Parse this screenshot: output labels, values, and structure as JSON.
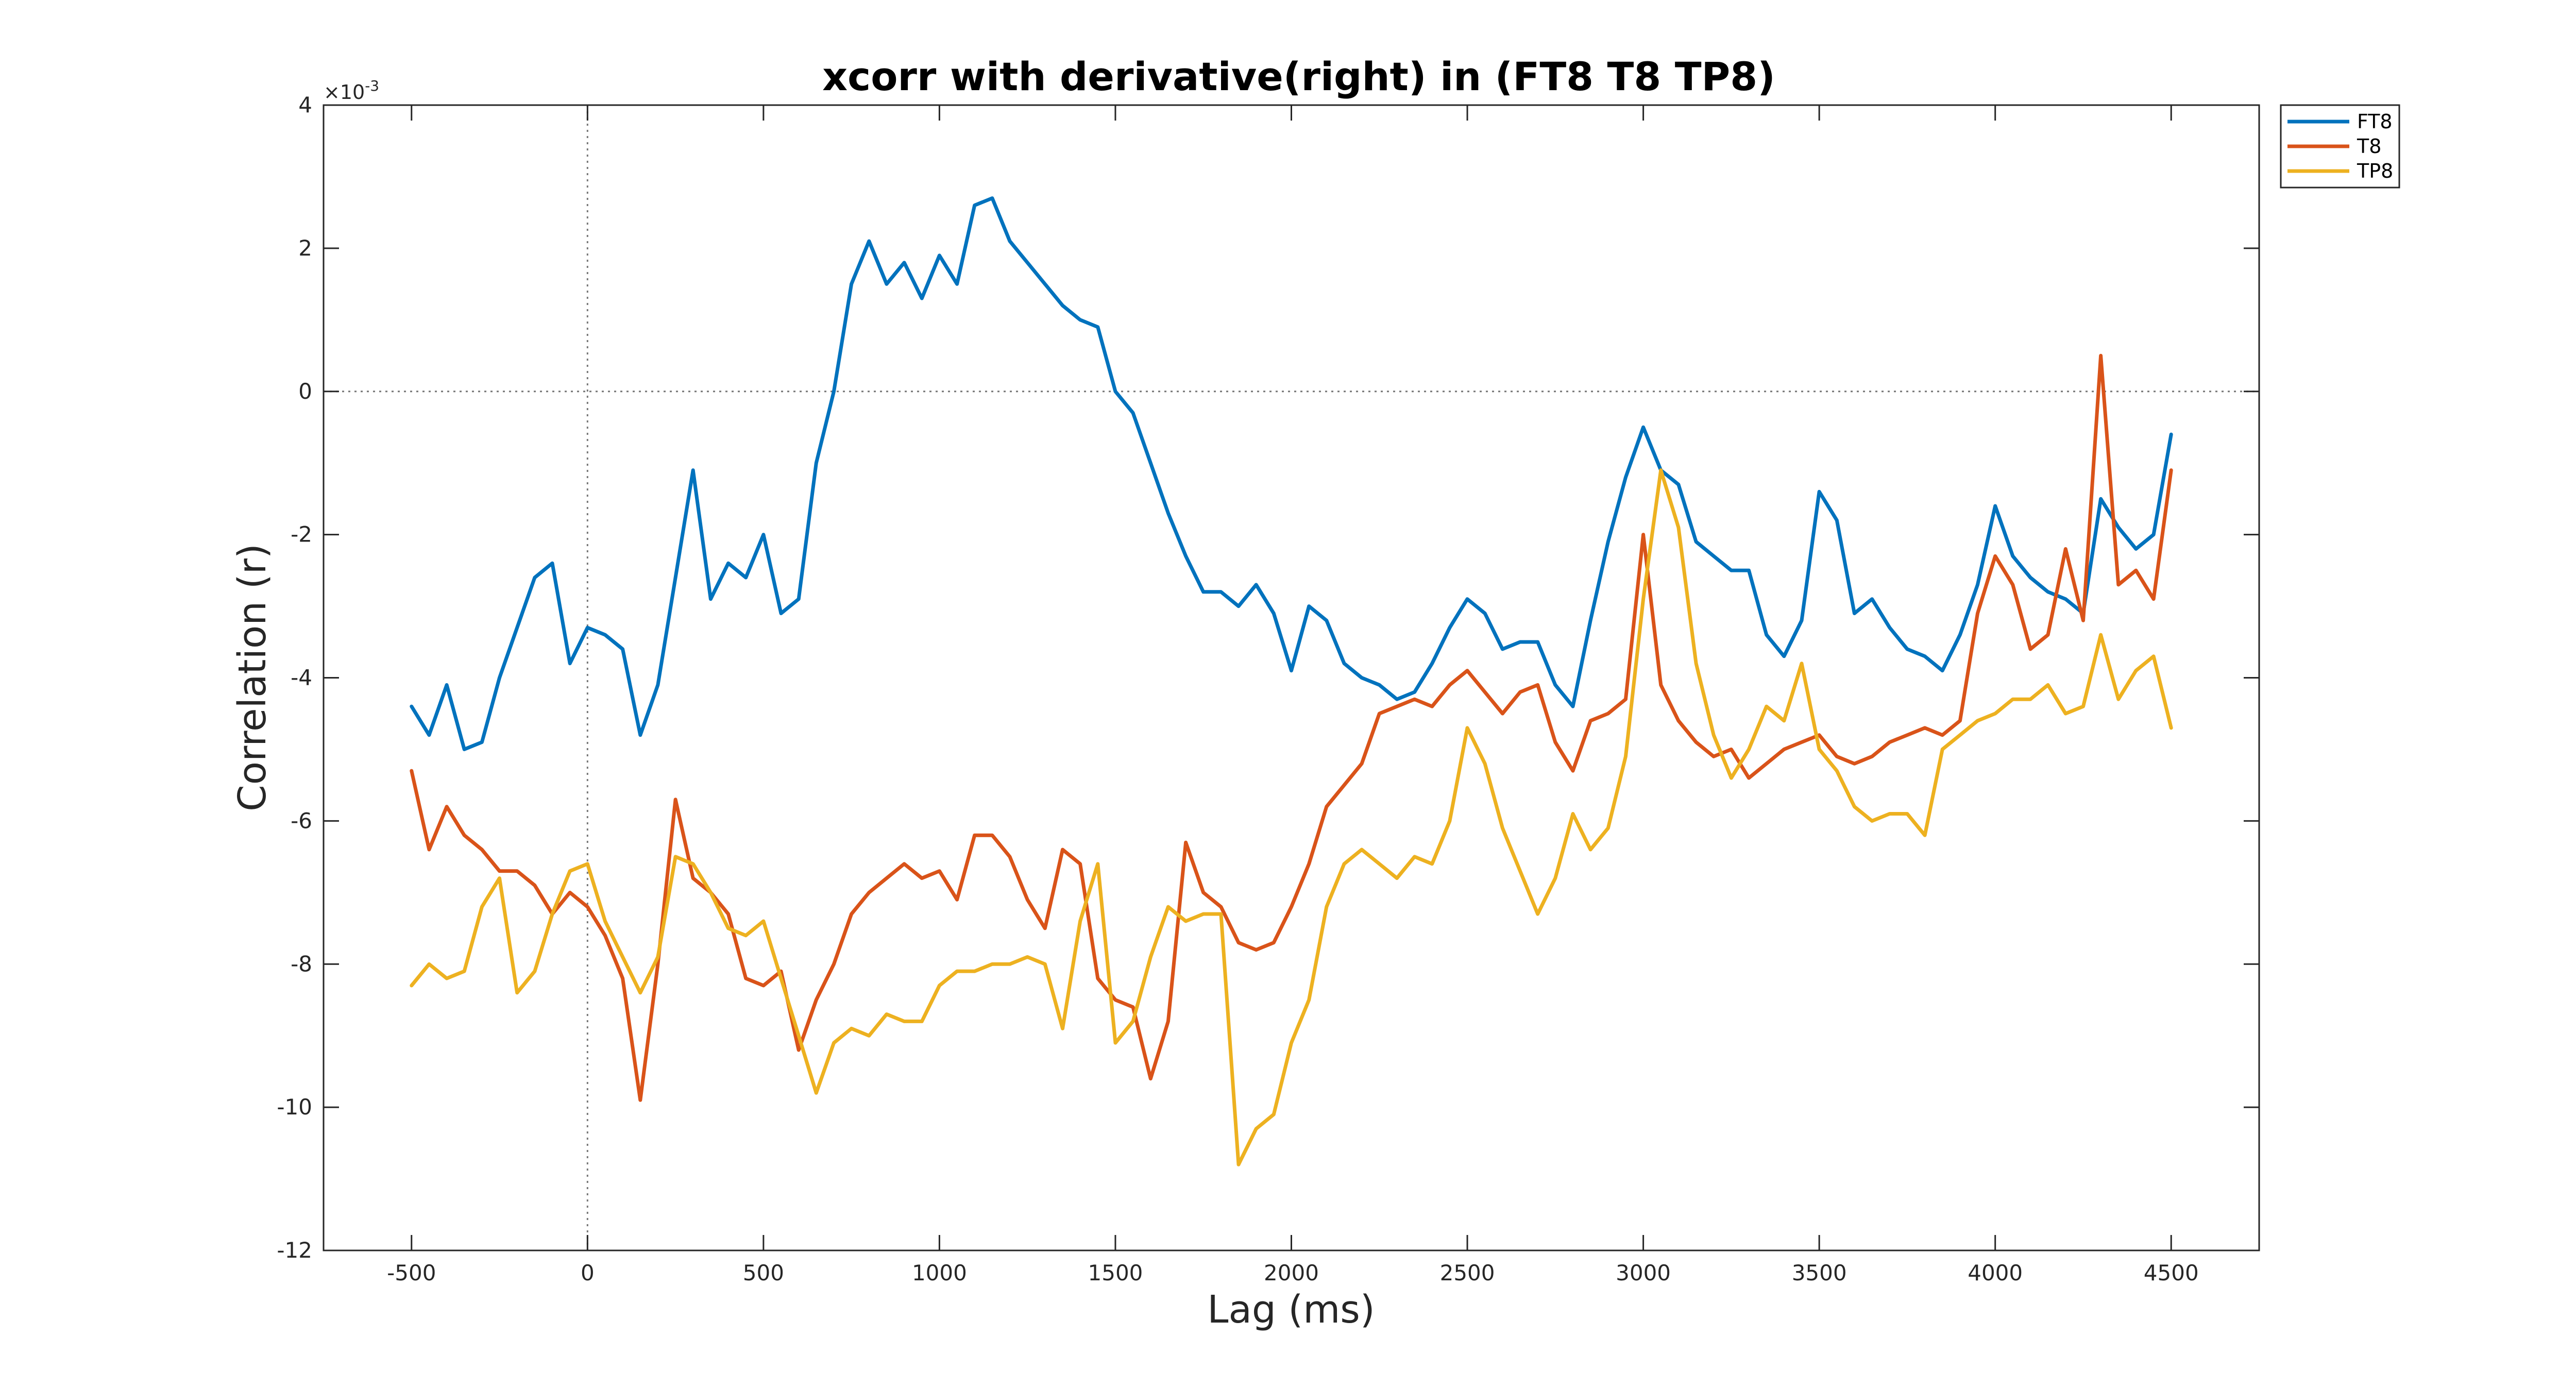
{
  "chart_data": {
    "type": "line",
    "title": "xcorr with derivative(right) in (FT8 T8 TP8)",
    "xlabel": "Lag (ms)",
    "ylabel": "Correlation (r)",
    "y_exponent_label": "×10",
    "y_exponent_power": "-3",
    "xlim": [
      -750,
      4750
    ],
    "ylim": [
      -12,
      4
    ],
    "xticks": [
      -500,
      0,
      500,
      1000,
      1500,
      2000,
      2500,
      3000,
      3500,
      4000,
      4500
    ],
    "xtick_labels": [
      "-500",
      "0",
      "500",
      "1000",
      "1500",
      "2000",
      "2500",
      "3000",
      "3500",
      "4000",
      "4500"
    ],
    "yticks": [
      4,
      2,
      0,
      -2,
      -4,
      -6,
      -8,
      -10,
      -12
    ],
    "ytick_labels": [
      "4",
      "2",
      "0",
      "-2",
      "-4",
      "-6",
      "-8",
      "-10",
      "-12"
    ],
    "reference_lines": {
      "x": 0,
      "y": 0
    },
    "grid": false,
    "legend_position": "top-right outside",
    "x": [
      -500,
      -450,
      -400,
      -350,
      -300,
      -250,
      -200,
      -150,
      -100,
      -50,
      0,
      50,
      100,
      150,
      200,
      250,
      300,
      350,
      400,
      450,
      500,
      550,
      600,
      650,
      700,
      750,
      800,
      850,
      900,
      950,
      1000,
      1050,
      1100,
      1150,
      1200,
      1250,
      1300,
      1350,
      1400,
      1450,
      1500,
      1550,
      1600,
      1650,
      1700,
      1750,
      1800,
      1850,
      1900,
      1950,
      2000,
      2050,
      2100,
      2150,
      2200,
      2250,
      2300,
      2350,
      2400,
      2450,
      2500,
      2550,
      2600,
      2650,
      2700,
      2750,
      2800,
      2850,
      2900,
      2950,
      3000,
      3050,
      3100,
      3150,
      3200,
      3250,
      3300,
      3350,
      3400,
      3450,
      3500,
      3550,
      3600,
      3650,
      3700,
      3750,
      3800,
      3850,
      3900,
      3950,
      4000,
      4050,
      4100,
      4150,
      4200,
      4250,
      4300,
      4350,
      4400,
      4450,
      4500
    ],
    "series": [
      {
        "name": "FT8",
        "color": "#0072BD",
        "values": [
          -4.4,
          -4.8,
          -4.1,
          -5.0,
          -4.9,
          -4.0,
          -3.3,
          -2.6,
          -2.4,
          -3.8,
          -3.3,
          -3.4,
          -3.6,
          -4.8,
          -4.1,
          -2.6,
          -1.1,
          -2.9,
          -2.4,
          -2.6,
          -2.0,
          -3.1,
          -2.9,
          -1.0,
          0.0,
          1.5,
          2.1,
          1.5,
          1.8,
          1.3,
          1.9,
          1.5,
          2.6,
          2.7,
          2.1,
          1.8,
          1.5,
          1.2,
          1.0,
          0.9,
          0.0,
          -0.3,
          -1.0,
          -1.7,
          -2.3,
          -2.8,
          -2.8,
          -3.0,
          -2.7,
          -3.1,
          -3.9,
          -3.0,
          -3.2,
          -3.8,
          -4.0,
          -4.1,
          -4.3,
          -4.2,
          -3.8,
          -3.3,
          -2.9,
          -3.1,
          -3.6,
          -3.5,
          -3.5,
          -4.1,
          -4.4,
          -3.2,
          -2.1,
          -1.2,
          -0.5,
          -1.1,
          -1.3,
          -2.1,
          -2.3,
          -2.5,
          -2.5,
          -3.4,
          -3.7,
          -3.2,
          -1.4,
          -1.8,
          -3.1,
          -2.9,
          -3.3,
          -3.6,
          -3.7,
          -3.9,
          -3.4,
          -2.7,
          -1.6,
          -2.3,
          -2.6,
          -2.8,
          -2.9,
          -3.1,
          -1.5,
          -1.9,
          -2.2,
          -2.0,
          -0.6
        ]
      },
      {
        "name": "T8",
        "color": "#D95319",
        "values": [
          -5.3,
          -6.4,
          -5.8,
          -6.2,
          -6.4,
          -6.7,
          -6.7,
          -6.9,
          -7.3,
          -7.0,
          -7.2,
          -7.6,
          -8.2,
          -9.9,
          -8.0,
          -5.7,
          -6.8,
          -7.0,
          -7.3,
          -8.2,
          -8.3,
          -8.1,
          -9.2,
          -8.5,
          -8.0,
          -7.3,
          -7.0,
          -6.8,
          -6.6,
          -6.8,
          -6.7,
          -7.1,
          -6.2,
          -6.2,
          -6.5,
          -7.1,
          -7.5,
          -6.4,
          -6.6,
          -8.2,
          -8.5,
          -8.6,
          -9.6,
          -8.8,
          -6.3,
          -7.0,
          -7.2,
          -7.7,
          -7.8,
          -7.7,
          -7.2,
          -6.6,
          -5.8,
          -5.5,
          -5.2,
          -4.5,
          -4.4,
          -4.3,
          -4.4,
          -4.1,
          -3.9,
          -4.2,
          -4.5,
          -4.2,
          -4.1,
          -4.9,
          -5.3,
          -4.6,
          -4.5,
          -4.3,
          -2.0,
          -4.1,
          -4.6,
          -4.9,
          -5.1,
          -5.0,
          -5.4,
          -5.2,
          -5.0,
          -4.9,
          -4.8,
          -5.1,
          -5.2,
          -5.1,
          -4.9,
          -4.8,
          -4.7,
          -4.8,
          -4.6,
          -3.1,
          -2.3,
          -2.7,
          -3.6,
          -3.4,
          -2.2,
          -3.2,
          0.5,
          -2.7,
          -2.5,
          -2.9,
          -1.1
        ]
      },
      {
        "name": "TP8",
        "color": "#EDB120",
        "values": [
          -8.3,
          -8.0,
          -8.2,
          -8.1,
          -7.2,
          -6.8,
          -8.4,
          -8.1,
          -7.3,
          -6.7,
          -6.6,
          -7.4,
          -7.9,
          -8.4,
          -7.9,
          -6.5,
          -6.6,
          -7.0,
          -7.5,
          -7.6,
          -7.4,
          -8.2,
          -9.0,
          -9.8,
          -9.1,
          -8.9,
          -9.0,
          -8.7,
          -8.8,
          -8.8,
          -8.3,
          -8.1,
          -8.1,
          -8.0,
          -8.0,
          -7.9,
          -8.0,
          -8.9,
          -7.4,
          -6.6,
          -9.1,
          -8.8,
          -7.9,
          -7.2,
          -7.4,
          -7.3,
          -7.3,
          -10.8,
          -10.3,
          -10.1,
          -9.1,
          -8.5,
          -7.2,
          -6.6,
          -6.4,
          -6.6,
          -6.8,
          -6.5,
          -6.6,
          -6.0,
          -4.7,
          -5.2,
          -6.1,
          -6.7,
          -7.3,
          -6.8,
          -5.9,
          -6.4,
          -6.1,
          -5.1,
          -2.9,
          -1.1,
          -1.9,
          -3.8,
          -4.8,
          -5.4,
          -5.0,
          -4.4,
          -4.6,
          -3.8,
          -5.0,
          -5.3,
          -5.8,
          -6.0,
          -5.9,
          -5.9,
          -6.2,
          -5.0,
          -4.8,
          -4.6,
          -4.5,
          -4.3,
          -4.3,
          -4.1,
          -4.5,
          -4.4,
          -3.4,
          -4.3,
          -3.9,
          -3.7,
          -4.7
        ]
      }
    ]
  }
}
